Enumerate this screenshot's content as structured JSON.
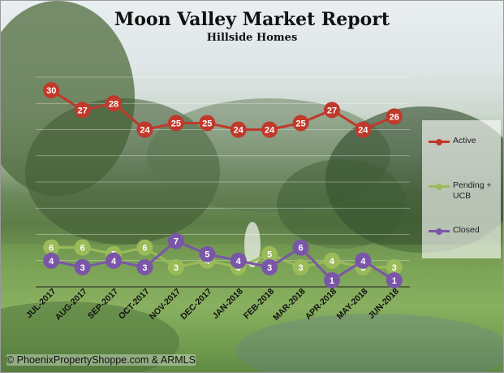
{
  "chart_data": {
    "type": "line",
    "title": "Moon Valley Market Report",
    "subtitle": "Hillside Homes",
    "categories": [
      "JUL-2017",
      "AUG-2017",
      "SEP-2017",
      "OCT-2017",
      "NOV-2017",
      "DEC-2017",
      "JAN-2018",
      "FEB-2018",
      "MAR-2018",
      "APR-2018",
      "MAY-2018",
      "JUN-2018"
    ],
    "series": [
      {
        "name": "Active",
        "color": "#c0392b",
        "values": [
          30,
          27,
          28,
          24,
          25,
          25,
          24,
          24,
          25,
          27,
          24,
          26
        ]
      },
      {
        "name": "Pending + UCB",
        "color": "#9bbb59",
        "values": [
          6,
          6,
          5,
          6,
          3,
          4,
          3,
          5,
          3,
          4,
          3,
          3
        ]
      },
      {
        "name": "Closed",
        "color": "#7a56a8",
        "values": [
          4,
          3,
          4,
          3,
          7,
          5,
          4,
          3,
          6,
          1,
          4,
          1
        ]
      }
    ],
    "ylim": [
      0,
      32
    ],
    "grid": true,
    "legend_position": "right"
  },
  "copyright": "© PhoenixPropertyShoppe.com & ARMLS"
}
